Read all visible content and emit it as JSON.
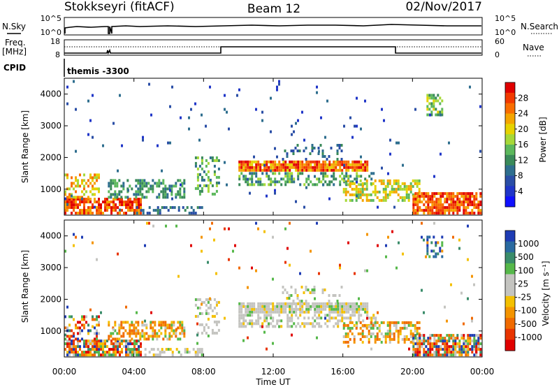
{
  "header": {
    "station": "Stokkseyri (fitACF)",
    "beam": "Beam 12",
    "date": "02/Nov/2017"
  },
  "panels": {
    "nsky_label": "N.Sky",
    "nsearch_label": "N.Search",
    "freq_label_line1": "Freq.",
    "freq_label_line2": "[MHz]",
    "nave_label": "Nave",
    "cpid_label": "CPID",
    "cpid_value": "themis -3300",
    "nsky_ticks": [
      "10^5",
      "10^0"
    ],
    "nsearch_ticks": [
      "10^5",
      "10^0"
    ],
    "freq_ticks": [
      "18",
      "8"
    ],
    "nave_ticks": [
      "60",
      "0"
    ]
  },
  "chart_data": [
    {
      "type": "heatmap",
      "panel": "power",
      "ylabel": "Slant Range [km]",
      "colorbar_label": "Power [dB]",
      "colorbar_ticks": [
        "28",
        "24",
        "20",
        "16",
        "12",
        "8",
        "4"
      ],
      "colorbar_colors": [
        "#e00000",
        "#f23a00",
        "#f96d00",
        "#f4a500",
        "#e6d200",
        "#a6d838",
        "#5cb85c",
        "#3a8a5a",
        "#2e6e8e",
        "#2a4ea6",
        "#2036c8",
        "#1010ff"
      ],
      "yticks": [
        "4000",
        "3000",
        "2000",
        "1000"
      ],
      "ylim": [
        180,
        4500
      ],
      "grid": false
    },
    {
      "type": "heatmap",
      "panel": "velocity",
      "ylabel": "Slant Range [km]",
      "colorbar_label": "Velocity [m s⁻¹]",
      "colorbar_ticks": [
        "1000",
        "500",
        "100",
        "25",
        "-25",
        "-100",
        "-500",
        "-1000"
      ],
      "colorbar_colors": [
        "#1e3cb4",
        "#2a6aa0",
        "#3a8c6a",
        "#56b84a",
        "#c4c4c0",
        "#c4c4c0",
        "#f4c000",
        "#f49400",
        "#f06a00",
        "#e83400",
        "#e00000"
      ],
      "yticks": [
        "4000",
        "3000",
        "2000",
        "1000"
      ],
      "ylim": [
        180,
        4500
      ],
      "grid": false
    }
  ],
  "time_axis": {
    "xlabel": "Time UT",
    "xticks": [
      "00:00",
      "04:00",
      "08:00",
      "12:00",
      "16:00",
      "20:00",
      "00:00"
    ]
  }
}
